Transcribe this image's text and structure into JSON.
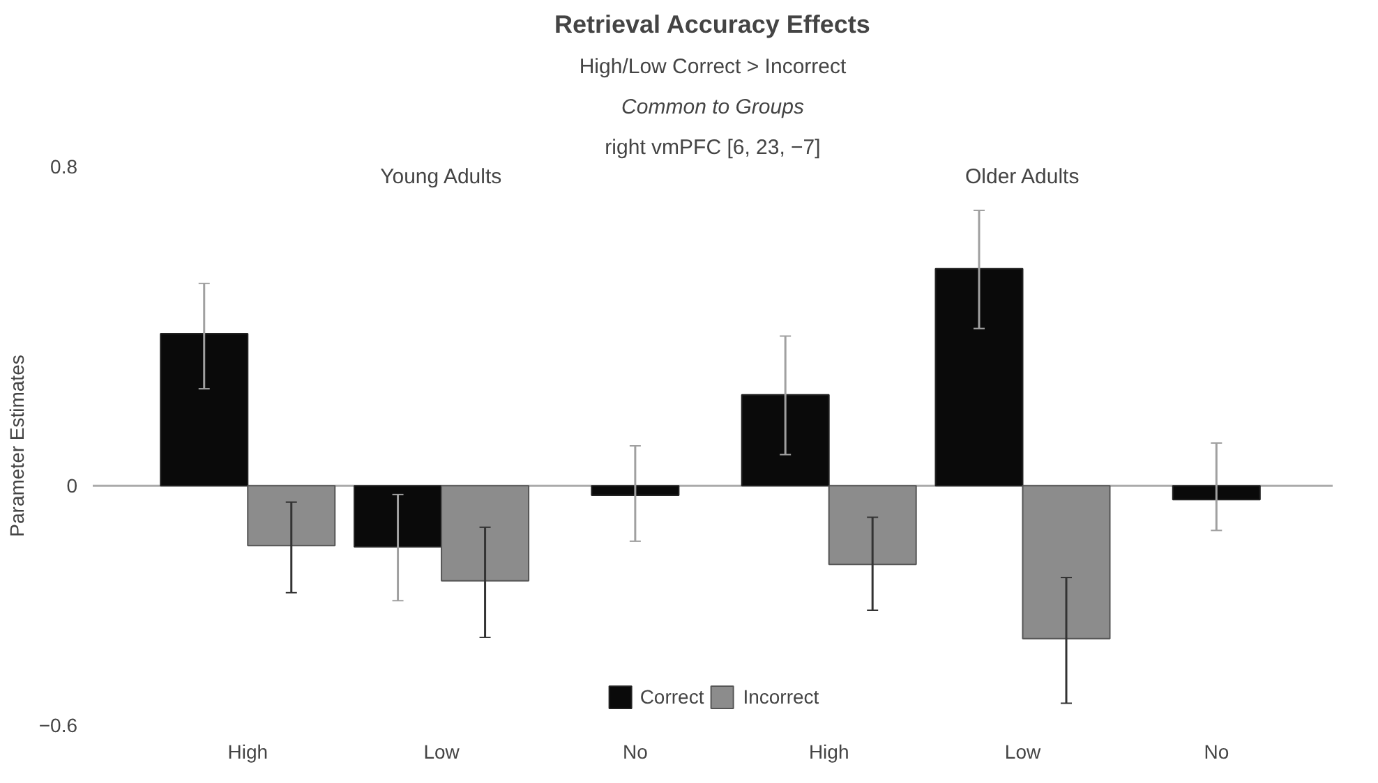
{
  "chart_data": {
    "type": "bar",
    "title": "Retrieval Accuracy Effects",
    "subtitle": "High/Low Correct > Incorrect",
    "ylabel": "Parameter Estimates",
    "categories": [
      "High",
      "Low",
      "No",
      "High",
      "Low",
      "No"
    ],
    "series": [
      {
        "name": "Correct",
        "color": "#0a0a0a",
        "values": [
          0.381,
          -0.153,
          -0.024,
          0.228,
          0.544,
          -0.035
        ],
        "errors": [
          [
            0.243,
            0.507
          ],
          [
            -0.288,
            -0.022
          ],
          [
            -0.139,
            0.1
          ],
          [
            0.078,
            0.375
          ],
          [
            0.394,
            0.69
          ],
          [
            -0.112,
            0.107
          ]
        ]
      },
      {
        "name": "Incorrect",
        "color": "#8c8c8c",
        "values": [
          -0.15,
          -0.238,
          null,
          -0.197,
          -0.383,
          null
        ],
        "errors": [
          [
            -0.268,
            -0.041
          ],
          [
            -0.38,
            -0.104
          ],
          null,
          [
            -0.312,
            -0.079
          ],
          [
            -0.545,
            -0.23
          ],
          null
        ]
      }
    ],
    "annotations": [
      "Common to Groups",
      "right vmPFC [6, 23, −7]",
      "Young Adults",
      "Older Adults"
    ],
    "ref_lines": [
      {
        "axis": "y",
        "value": 0,
        "color": "#aaaaaa"
      }
    ],
    "ylim": [
      -0.6,
      0.8
    ],
    "yticks": [
      -0.6,
      0,
      0.8
    ],
    "grid": false,
    "legend": "bottom"
  }
}
